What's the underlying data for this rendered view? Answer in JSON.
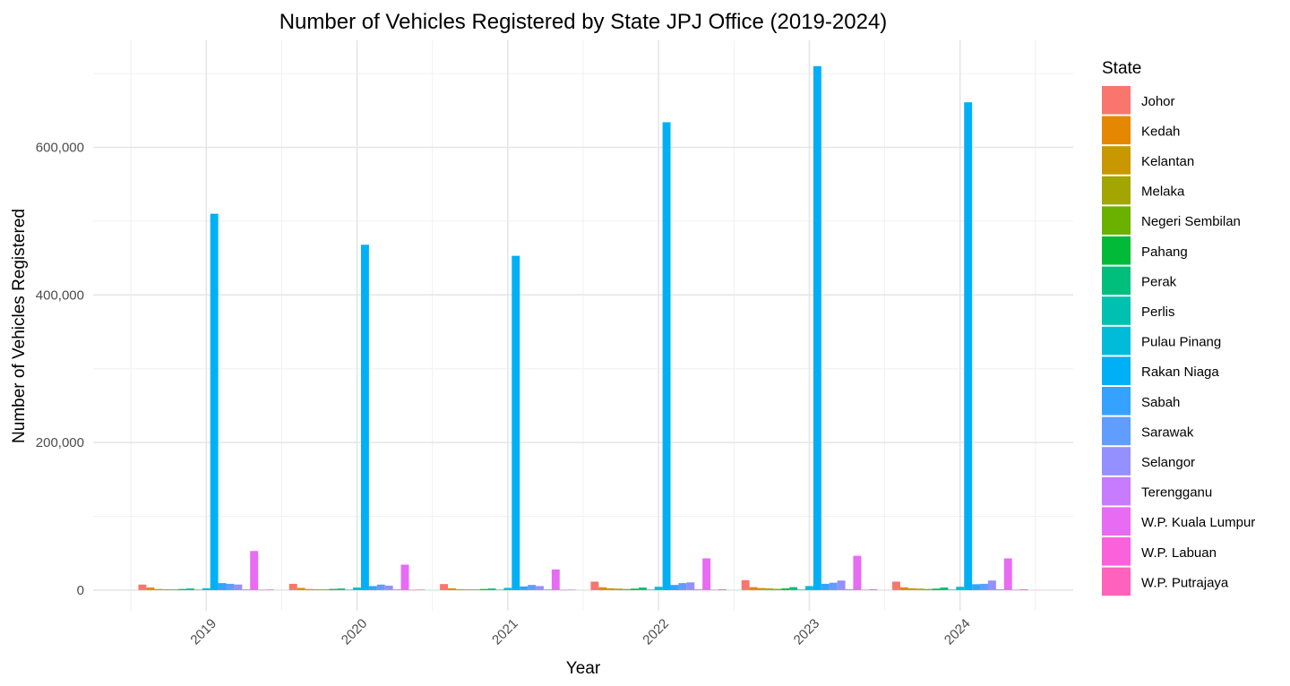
{
  "chart_data": {
    "type": "bar",
    "title": "Number of Vehicles Registered by State JPJ Office (2019-2024)",
    "xlabel": "Year",
    "ylabel": "Number of Vehicles Registered",
    "categories": [
      "2019",
      "2020",
      "2021",
      "2022",
      "2023",
      "2024"
    ],
    "ylim": [
      -28000,
      745000
    ],
    "yticks": [
      0,
      200000,
      400000,
      600000
    ],
    "ytick_labels": [
      "0",
      "200,000",
      "400,000",
      "600,000"
    ],
    "grid": true,
    "legend": {
      "title": "State",
      "position": "right"
    },
    "series": [
      {
        "name": "Johor",
        "color": "#F8766D",
        "values": [
          7500,
          8500,
          8200,
          11500,
          13500,
          11500
        ]
      },
      {
        "name": "Kedah",
        "color": "#E58700",
        "values": [
          3500,
          3000,
          2500,
          3800,
          4000,
          3800
        ]
      },
      {
        "name": "Kelantan",
        "color": "#C99800",
        "values": [
          1500,
          1500,
          1300,
          2500,
          2800,
          2500
        ]
      },
      {
        "name": "Melaka",
        "color": "#A3A500",
        "values": [
          1200,
          1200,
          1000,
          2000,
          2300,
          2000
        ]
      },
      {
        "name": "Negeri Sembilan",
        "color": "#6BB100",
        "values": [
          1000,
          1000,
          900,
          1500,
          1700,
          1500
        ]
      },
      {
        "name": "Pahang",
        "color": "#00BA38",
        "values": [
          1500,
          1600,
          1500,
          2000,
          2300,
          2000
        ]
      },
      {
        "name": "Perak",
        "color": "#00BF7D",
        "values": [
          2200,
          2200,
          2200,
          3500,
          4000,
          3500
        ]
      },
      {
        "name": "Perlis",
        "color": "#00C0AF",
        "values": [
          500,
          500,
          500,
          700,
          800,
          700
        ]
      },
      {
        "name": "Pulau Pinang",
        "color": "#00BCD8",
        "values": [
          2500,
          3500,
          3000,
          4500,
          5500,
          4500
        ]
      },
      {
        "name": "Rakan Niaga",
        "color": "#00B0F6",
        "values": [
          510000,
          468000,
          453000,
          634000,
          710000,
          661000
        ]
      },
      {
        "name": "Sabah",
        "color": "#35A2FF",
        "values": [
          9500,
          5500,
          5000,
          7000,
          8500,
          8000
        ]
      },
      {
        "name": "Sarawak",
        "color": "#619CFF",
        "values": [
          8500,
          7500,
          7000,
          9500,
          10000,
          8500
        ]
      },
      {
        "name": "Selangor",
        "color": "#9590FF",
        "values": [
          7500,
          6000,
          5500,
          10500,
          13000,
          13000
        ]
      },
      {
        "name": "Terengganu",
        "color": "#C77CFF",
        "values": [
          1000,
          1000,
          1000,
          1200,
          1300,
          1200
        ]
      },
      {
        "name": "W.P. Kuala Lumpur",
        "color": "#E76BF3",
        "values": [
          53000,
          34500,
          28000,
          43000,
          46500,
          43000
        ]
      },
      {
        "name": "W.P. Labuan",
        "color": "#FA62DB",
        "values": [
          300,
          300,
          300,
          400,
          400,
          400
        ]
      },
      {
        "name": "W.P. Putrajaya",
        "color": "#FF62BC",
        "values": [
          800,
          700,
          600,
          1200,
          1200,
          1200
        ]
      }
    ]
  }
}
